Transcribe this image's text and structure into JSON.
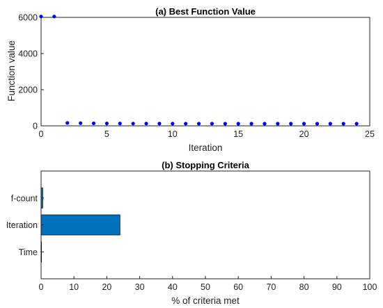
{
  "chart_data": [
    {
      "type": "scatter",
      "title": "(a) Best Function Value",
      "xlabel": "Iteration",
      "ylabel": "Function value",
      "xlim": [
        0,
        25
      ],
      "ylim": [
        0,
        6000
      ],
      "xticks": [
        0,
        5,
        10,
        15,
        20,
        25
      ],
      "yticks": [
        0,
        2000,
        4000,
        6000
      ],
      "marker_color": "#0000ff",
      "grid": false,
      "x": [
        0,
        1,
        2,
        3,
        4,
        5,
        6,
        7,
        8,
        9,
        10,
        11,
        12,
        13,
        14,
        15,
        16,
        17,
        18,
        19,
        20,
        21,
        22,
        23,
        24
      ],
      "y": [
        6050,
        6050,
        160,
        150,
        140,
        135,
        130,
        128,
        126,
        125,
        124,
        123,
        122,
        122,
        121,
        121,
        120,
        120,
        120,
        120,
        120,
        120,
        120,
        120,
        120
      ]
    },
    {
      "type": "bar",
      "orientation": "horizontal",
      "title": "(b) Stopping Criteria",
      "xlabel": "% of criteria met",
      "ylabel": "",
      "xlim": [
        0,
        100
      ],
      "xticks": [
        0,
        10,
        20,
        30,
        40,
        50,
        60,
        70,
        80,
        90,
        100
      ],
      "categories": [
        "f-count",
        "Iteration",
        "Time"
      ],
      "values": [
        0.5,
        24,
        0.1
      ],
      "bar_color": "#0072bd",
      "grid": false
    }
  ]
}
